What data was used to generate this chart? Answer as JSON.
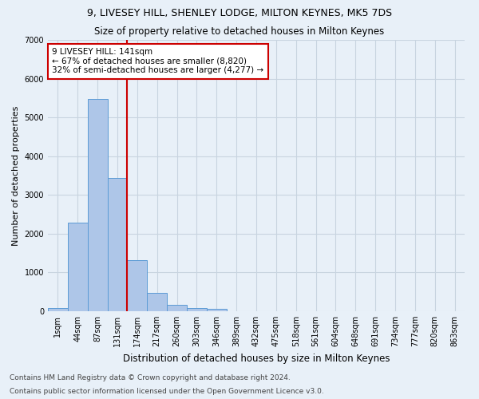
{
  "title1": "9, LIVESEY HILL, SHENLEY LODGE, MILTON KEYNES, MK5 7DS",
  "title2": "Size of property relative to detached houses in Milton Keynes",
  "xlabel": "Distribution of detached houses by size in Milton Keynes",
  "ylabel": "Number of detached properties",
  "footnote1": "Contains HM Land Registry data © Crown copyright and database right 2024.",
  "footnote2": "Contains public sector information licensed under the Open Government Licence v3.0.",
  "annotation_title": "9 LIVESEY HILL: 141sqm",
  "annotation_line1": "← 67% of detached houses are smaller (8,820)",
  "annotation_line2": "32% of semi-detached houses are larger (4,277) →",
  "bar_categories": [
    "1sqm",
    "44sqm",
    "87sqm",
    "131sqm",
    "174sqm",
    "217sqm",
    "260sqm",
    "303sqm",
    "346sqm",
    "389sqm",
    "432sqm",
    "475sqm",
    "518sqm",
    "561sqm",
    "604sqm",
    "648sqm",
    "691sqm",
    "734sqm",
    "777sqm",
    "820sqm",
    "863sqm"
  ],
  "bar_values": [
    80,
    2280,
    5480,
    3430,
    1310,
    470,
    160,
    90,
    55,
    0,
    0,
    0,
    0,
    0,
    0,
    0,
    0,
    0,
    0,
    0,
    0
  ],
  "bar_color": "#aec6e8",
  "bar_edge_color": "#5b9bd5",
  "vline_color": "#cc0000",
  "vline_x": 3.5,
  "ylim": [
    0,
    7000
  ],
  "yticks": [
    0,
    1000,
    2000,
    3000,
    4000,
    5000,
    6000,
    7000
  ],
  "grid_color": "#c8d4e0",
  "bg_color": "#e8f0f8",
  "annotation_box_color": "#ffffff",
  "annotation_box_edge": "#cc0000",
  "title1_fontsize": 9,
  "title2_fontsize": 8.5,
  "xlabel_fontsize": 8.5,
  "ylabel_fontsize": 8,
  "tick_fontsize": 7,
  "annotation_fontsize": 7.5,
  "footnote_fontsize": 6.5
}
